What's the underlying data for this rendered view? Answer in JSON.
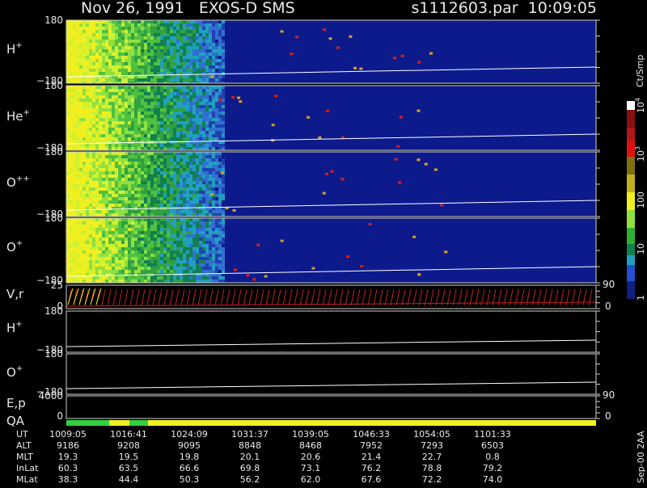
{
  "header": {
    "title": "Nov 26, 1991   EXOS-D SMS",
    "file": "s1112603.par  10:09:05"
  },
  "panels": [
    {
      "label": "H",
      "sup": "+",
      "top": "180",
      "bottom": "−180"
    },
    {
      "label": "He",
      "sup": "+",
      "top": "180",
      "bottom": "−180"
    },
    {
      "label": "O",
      "sup": "++",
      "top": "180",
      "bottom": "−180"
    },
    {
      "label": "O",
      "sup": "+",
      "top": "180",
      "bottom": "−180"
    },
    {
      "label": "V,r",
      "top": "25",
      "bottom": "0",
      "right_top": "90",
      "right_bottom": "0"
    },
    {
      "label": "H",
      "sup": "+",
      "top": "180",
      "bottom": "−180"
    },
    {
      "label": "O",
      "sup": "+",
      "top": "180",
      "bottom": "−180"
    },
    {
      "label": "E,p",
      "top": "4000",
      "bottom": "0",
      "right_top": "90",
      "right_bottom": "0"
    },
    {
      "label": "QA"
    }
  ],
  "colorbar": {
    "label": "Ct/Smp",
    "ticks": [
      {
        "base": "10",
        "exp": "4"
      },
      {
        "base": "10",
        "exp": "3"
      },
      {
        "base": "100"
      },
      {
        "base": "10"
      },
      {
        "base": "1"
      }
    ]
  },
  "footer": {
    "rows": [
      {
        "label": "UT",
        "values": [
          "1009:05",
          "1016:41",
          "1024:09",
          "1031:37",
          "1039:05",
          "1046:33",
          "1054:05",
          "1101:33"
        ]
      },
      {
        "label": "ALT",
        "values": [
          "9186",
          "9208",
          "9095",
          "8848",
          "8468",
          "7952",
          "7293",
          "6503"
        ]
      },
      {
        "label": "MLT",
        "values": [
          "19.3",
          "19.5",
          "19.8",
          "20.1",
          "20.6",
          "21.4",
          "22.7",
          "0.8"
        ]
      },
      {
        "label": "InLat",
        "values": [
          "60.3",
          "63.5",
          "66.6",
          "69.8",
          "73.1",
          "76.2",
          "78.8",
          "79.2"
        ]
      },
      {
        "label": "MLat",
        "values": [
          "38.3",
          "44.4",
          "50.3",
          "56.2",
          "62.0",
          "67.6",
          "72.2",
          "74.0"
        ]
      }
    ],
    "stamp": "Sep-00 2AA"
  }
}
